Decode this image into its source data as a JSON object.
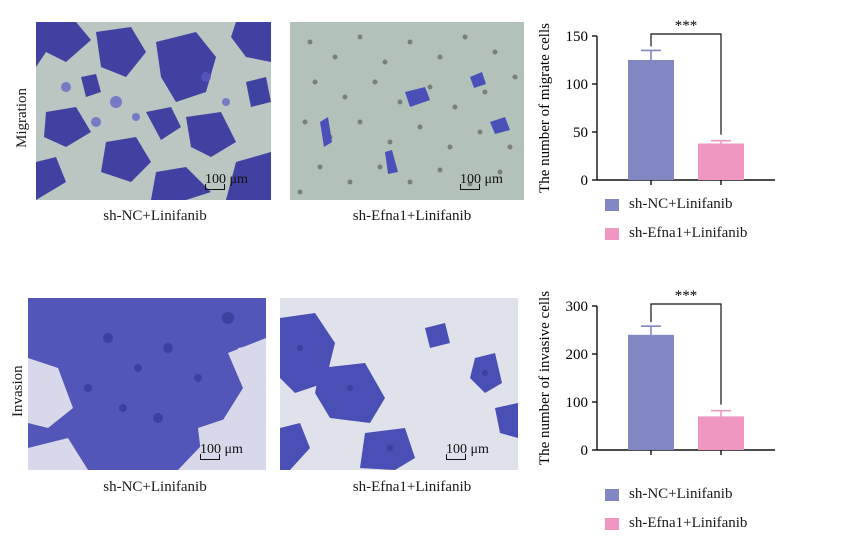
{
  "colors": {
    "nc": "#8087c3",
    "efna": "#f097c1",
    "stain_dark": "#3a3aa0",
    "stain_light": "#5a5cc8",
    "bg_migration_1": "#b9c6c1",
    "bg_migration_2": "#b3c2b9",
    "bg_invasion_1": "#d7d9ea",
    "bg_invasion_2": "#dfe2ea"
  },
  "rows": {
    "migration_label": "Migration",
    "invasion_label": "Invasion"
  },
  "panels": {
    "scale_label": "100 μm",
    "migration_nc_caption": "sh-NC+Linifanib",
    "migration_efna_caption": "sh-Efna1+Linifanib",
    "invasion_nc_caption": "sh-NC+Linifanib",
    "invasion_efna_caption": "sh-Efna1+Linifanib"
  },
  "chart_data": [
    {
      "type": "bar",
      "categories": [
        "sh-NC+Linifanib",
        "sh-Efna1+Linifanib"
      ],
      "values": [
        125,
        38
      ],
      "errors": [
        10,
        3
      ],
      "ylabel": "The number of migrate cells",
      "ylim": [
        0,
        150
      ],
      "yticks": [
        0,
        50,
        100,
        150
      ],
      "significance": "***",
      "legend_position": "bottom"
    },
    {
      "type": "bar",
      "categories": [
        "sh-NC+Linifanib",
        "sh-Efna1+Linifanib"
      ],
      "values": [
        240,
        70
      ],
      "errors": [
        18,
        12
      ],
      "ylabel": "The number of invasive cells",
      "ylim": [
        0,
        300
      ],
      "yticks": [
        0,
        100,
        200,
        300
      ],
      "significance": "***",
      "legend_position": "bottom"
    }
  ]
}
